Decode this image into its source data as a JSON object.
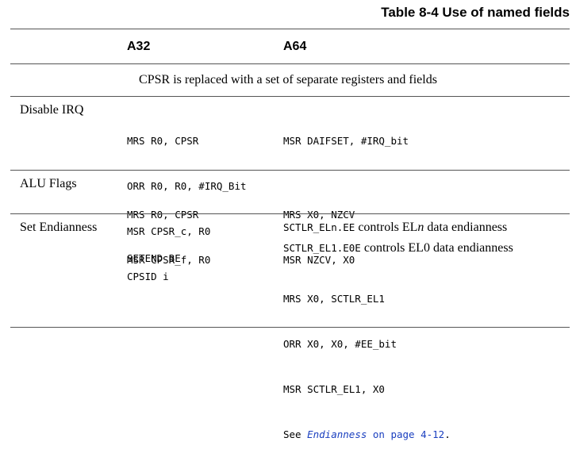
{
  "title": "Table 8-4 Use of named fields",
  "headers": {
    "col2": "A32",
    "col3": "A64"
  },
  "span_row": "CPSR is replaced with a set of separate registers and fields",
  "rows": [
    {
      "label": "Disable IRQ",
      "a32": [
        "MRS R0, CPSR",
        "ORR R0, R0, #IRQ_Bit",
        "MSR CPSR_c, R0",
        "CPSID i"
      ],
      "a64": [
        "MSR DAIFSET, #IRQ_bit"
      ]
    },
    {
      "label": "ALU Flags",
      "a32": [
        "MRS R0, CPSR",
        "MSR CPSR_f, R0"
      ],
      "a64": [
        "MRS X0, NZCV",
        "MSR NZCV, X0"
      ]
    },
    {
      "label": "Set Endianness",
      "a32": [
        "SETEND BE"
      ],
      "a64_note1": {
        "reg": "SCTLR_ELn.EE",
        "text_pre": " controls EL",
        "text_italic": "n",
        "text_post": " data endianness"
      },
      "a64_note2": {
        "reg": "SCTLR_EL1.E0E",
        "text": " controls EL0 data endianness"
      },
      "a64": [
        "MRS X0, SCTLR_EL1",
        "ORR X0, X0, #EE_bit",
        "MSR SCTLR_EL1, X0"
      ],
      "see": {
        "prefix": "See ",
        "link_italic": "Endianness",
        "link_rest": " on page 4-12",
        "suffix": "."
      }
    }
  ]
}
